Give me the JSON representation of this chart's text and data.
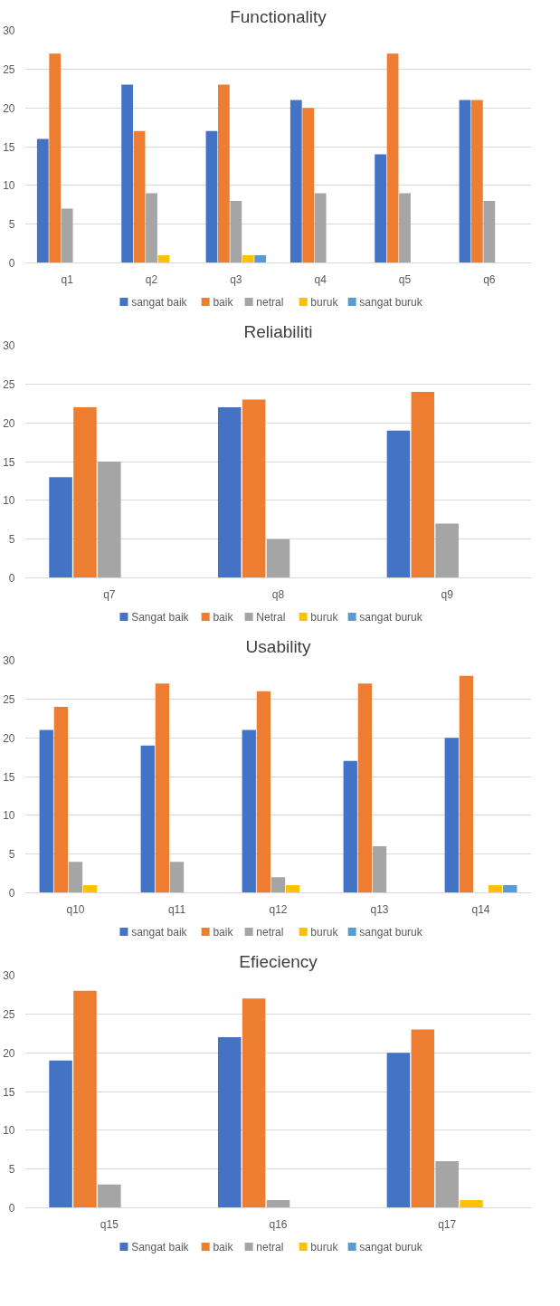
{
  "chart_data": [
    {
      "type": "bar",
      "title": "Functionality",
      "categories": [
        "q1",
        "q2",
        "q3",
        "q4",
        "q5",
        "q6"
      ],
      "series": [
        {
          "name": "sangat baik",
          "color": "#4472c4",
          "values": [
            16,
            23,
            17,
            21,
            14,
            21
          ]
        },
        {
          "name": "baik",
          "color": "#ed7d31",
          "values": [
            27,
            17,
            23,
            20,
            27,
            21
          ]
        },
        {
          "name": "netral",
          "color": "#a5a5a5",
          "values": [
            7,
            9,
            8,
            9,
            9,
            8
          ]
        },
        {
          "name": "buruk",
          "color": "#ffc000",
          "values": [
            null,
            1,
            1,
            null,
            null,
            null
          ]
        },
        {
          "name": "sangat buruk",
          "color": "#5b9bd5",
          "values": [
            null,
            null,
            1,
            null,
            null,
            null
          ]
        }
      ],
      "ylim": [
        0,
        30
      ],
      "yticks": [
        0,
        5,
        10,
        15,
        20,
        25,
        30
      ],
      "grid": "y",
      "legend": "bottom"
    },
    {
      "type": "bar",
      "title": "Reliabiliti",
      "categories": [
        "q7",
        "q8",
        "q9"
      ],
      "series": [
        {
          "name": "Sangat baik",
          "color": "#4472c4",
          "values": [
            13,
            22,
            19
          ]
        },
        {
          "name": "baik",
          "color": "#ed7d31",
          "values": [
            22,
            23,
            24
          ]
        },
        {
          "name": "Netral",
          "color": "#a5a5a5",
          "values": [
            15,
            5,
            7
          ]
        },
        {
          "name": "buruk",
          "color": "#ffc000",
          "values": [
            null,
            null,
            null
          ]
        },
        {
          "name": "sangat buruk",
          "color": "#5b9bd5",
          "values": [
            null,
            null,
            null
          ]
        }
      ],
      "ylim": [
        0,
        30
      ],
      "yticks": [
        0,
        5,
        10,
        15,
        20,
        25,
        30
      ],
      "grid": "y",
      "legend": "bottom"
    },
    {
      "type": "bar",
      "title": "Usability",
      "categories": [
        "q10",
        "q11",
        "q12",
        "q13",
        "q14"
      ],
      "series": [
        {
          "name": "sangat baik",
          "color": "#4472c4",
          "values": [
            21,
            19,
            21,
            17,
            20
          ]
        },
        {
          "name": "baik",
          "color": "#ed7d31",
          "values": [
            24,
            27,
            26,
            27,
            28
          ]
        },
        {
          "name": "netral",
          "color": "#a5a5a5",
          "values": [
            4,
            4,
            2,
            6,
            null
          ]
        },
        {
          "name": "buruk",
          "color": "#ffc000",
          "values": [
            1,
            null,
            1,
            null,
            1
          ]
        },
        {
          "name": "sangat buruk",
          "color": "#5b9bd5",
          "values": [
            null,
            null,
            null,
            null,
            1
          ]
        }
      ],
      "ylim": [
        0,
        30
      ],
      "yticks": [
        0,
        5,
        10,
        15,
        20,
        25,
        30
      ],
      "grid": "y",
      "legend": "bottom"
    },
    {
      "type": "bar",
      "title": "Efieciency",
      "categories": [
        "q15",
        "q16",
        "q17"
      ],
      "series": [
        {
          "name": "Sangat baik",
          "color": "#4472c4",
          "values": [
            19,
            22,
            20
          ]
        },
        {
          "name": "baik",
          "color": "#ed7d31",
          "values": [
            28,
            27,
            23
          ]
        },
        {
          "name": "netral",
          "color": "#a5a5a5",
          "values": [
            3,
            1,
            6
          ]
        },
        {
          "name": "buruk",
          "color": "#ffc000",
          "values": [
            null,
            null,
            1
          ]
        },
        {
          "name": "sangat buruk",
          "color": "#5b9bd5",
          "values": [
            null,
            null,
            null
          ]
        }
      ],
      "ylim": [
        0,
        30
      ],
      "yticks": [
        0,
        5,
        10,
        15,
        20,
        25,
        30
      ],
      "grid": "y",
      "legend": "bottom"
    }
  ]
}
